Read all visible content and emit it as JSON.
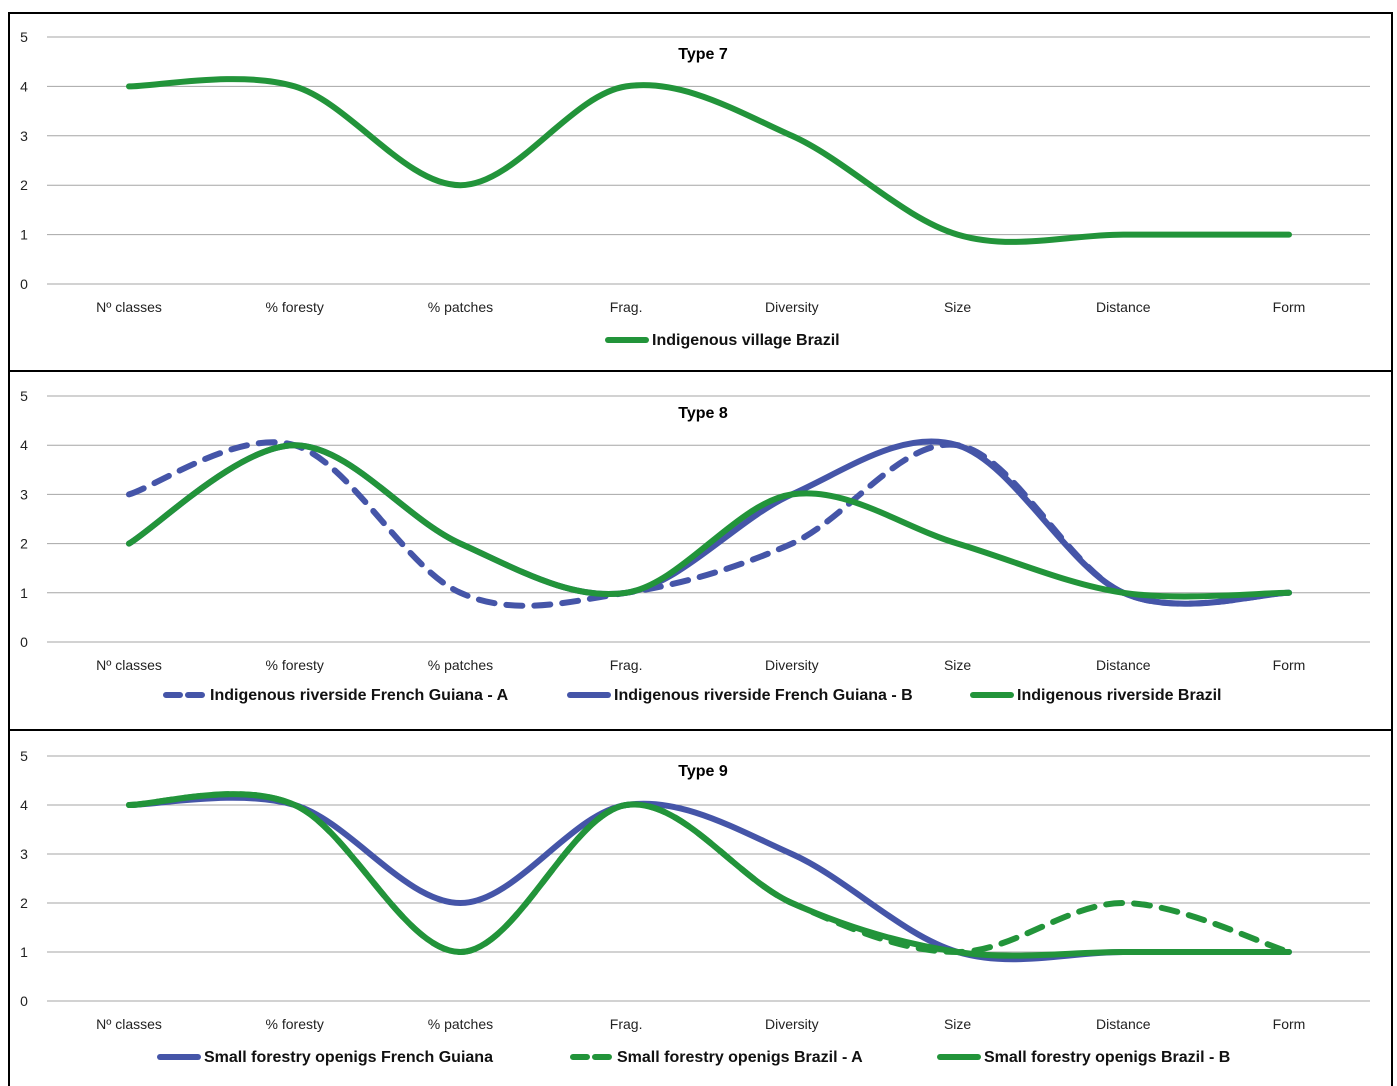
{
  "chart_data": [
    {
      "type": "line",
      "title": "Type 7",
      "categories": [
        "Nº classes",
        "% foresty",
        "% patches",
        "Frag.",
        "Diversity",
        "Size",
        "Distance",
        "Form"
      ],
      "ylim": [
        0,
        5
      ],
      "yticks": [
        "0",
        "1",
        "2",
        "3",
        "4",
        "5"
      ],
      "grid": true,
      "legend_position": "bottom",
      "series": [
        {
          "name": "Indigenous village Brazil",
          "values": [
            4,
            4,
            2,
            4,
            3,
            1,
            1,
            1
          ],
          "color": "#22943a",
          "dash": false
        }
      ]
    },
    {
      "type": "line",
      "title": "Type 8",
      "categories": [
        "Nº classes",
        "% foresty",
        "% patches",
        "Frag.",
        "Diversity",
        "Size",
        "Distance",
        "Form"
      ],
      "ylim": [
        0,
        5
      ],
      "yticks": [
        "0",
        "1",
        "2",
        "3",
        "4",
        "5"
      ],
      "grid": true,
      "legend_position": "bottom",
      "series": [
        {
          "name": "Indigenous riverside French Guiana - A",
          "values": [
            3,
            4,
            1,
            1,
            2,
            4,
            1,
            1
          ],
          "color": "#4555a8",
          "dash": true
        },
        {
          "name": "Indigenous riverside French Guiana - B",
          "values": [
            2,
            4,
            2,
            1,
            3,
            4,
            1,
            1
          ],
          "color": "#4555a8",
          "dash": false
        },
        {
          "name": "Indigenous riverside Brazil",
          "values": [
            2,
            4,
            2,
            1,
            3,
            2,
            1,
            1
          ],
          "color": "#22943a",
          "dash": false
        }
      ]
    },
    {
      "type": "line",
      "title": "Type 9",
      "categories": [
        "Nº classes",
        "% foresty",
        "% patches",
        "Frag.",
        "Diversity",
        "Size",
        "Distance",
        "Form"
      ],
      "ylim": [
        0,
        5
      ],
      "yticks": [
        "0",
        "1",
        "2",
        "3",
        "4",
        "5"
      ],
      "grid": true,
      "legend_position": "bottom",
      "series": [
        {
          "name": "Small forestry openigs French Guiana",
          "values": [
            4,
            4,
            2,
            4,
            3,
            1,
            1,
            1
          ],
          "color": "#4555a8",
          "dash": false
        },
        {
          "name": "Small forestry openigs Brazil  - A",
          "values": [
            4,
            4,
            1,
            4,
            2,
            1,
            2,
            1
          ],
          "color": "#22943a",
          "dash": true
        },
        {
          "name": "Small forestry openigs Brazil  - B",
          "values": [
            4,
            4,
            1,
            4,
            2,
            1,
            1,
            1
          ],
          "color": "#22943a",
          "dash": false
        }
      ]
    }
  ]
}
